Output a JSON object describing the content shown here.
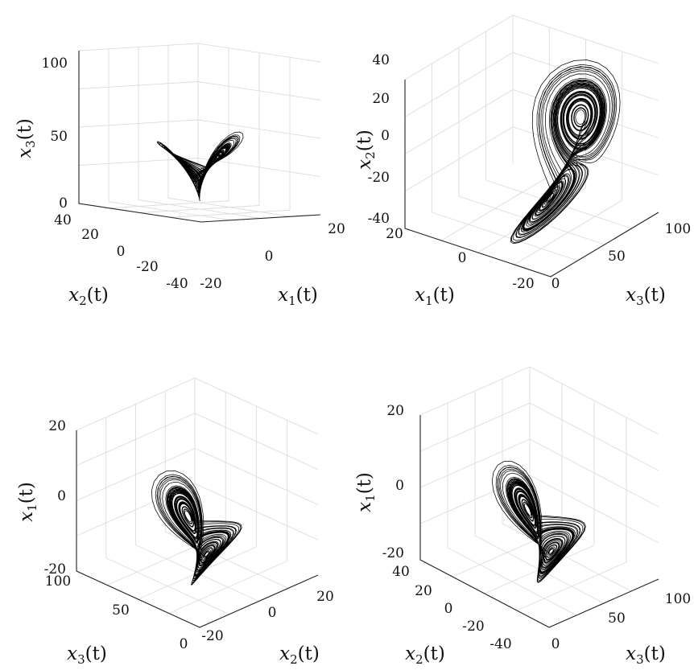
{
  "chart_data": [
    {
      "type": "line",
      "subtype": "3d-trajectory",
      "panel": "top-left",
      "xlabel": "x_1(t)",
      "ylabel": "x_2(t)",
      "zlabel": "x_3(t)",
      "xlim": [
        -20,
        20
      ],
      "ylim": [
        -40,
        40
      ],
      "zlim": [
        0,
        100
      ],
      "xticks": [
        "-20",
        "0",
        "20"
      ],
      "yticks": [
        "40",
        "20",
        "0",
        "-20",
        "-40"
      ],
      "zticks": [
        "0",
        "50",
        "100"
      ],
      "grid": true
    },
    {
      "type": "line",
      "subtype": "3d-trajectory",
      "panel": "top-right",
      "xlabel": "x_1(t)",
      "ylabel": "x_3(t)",
      "zlabel": "x_2(t)",
      "xlim": [
        -20,
        20
      ],
      "ylim": [
        0,
        100
      ],
      "zlim": [
        -40,
        40
      ],
      "xticks": [
        "20",
        "0",
        "-20"
      ],
      "yticks": [
        "0",
        "50",
        "100"
      ],
      "zticks": [
        "-40",
        "-20",
        "0",
        "20",
        "40"
      ],
      "grid": true
    },
    {
      "type": "line",
      "subtype": "3d-trajectory",
      "panel": "bottom-left",
      "xlabel": "x_3(t)",
      "ylabel": "x_2(t)",
      "zlabel": "x_1(t)",
      "xlim": [
        0,
        100
      ],
      "ylim": [
        -20,
        20
      ],
      "zlim": [
        -20,
        20
      ],
      "xticks": [
        "100",
        "50",
        "0"
      ],
      "yticks": [
        "-20",
        "0",
        "20"
      ],
      "zticks": [
        "-20",
        "0",
        "20"
      ],
      "grid": true
    },
    {
      "type": "line",
      "subtype": "3d-trajectory",
      "panel": "bottom-right",
      "xlabel": "x_2(t)",
      "ylabel": "x_3(t)",
      "zlabel": "x_1(t)",
      "xlim": [
        -40,
        40
      ],
      "ylim": [
        0,
        100
      ],
      "zlim": [
        -20,
        20
      ],
      "xticks": [
        "40",
        "20",
        "0",
        "-20",
        "-40"
      ],
      "yticks": [
        "0",
        "50",
        "100"
      ],
      "zticks": [
        "-20",
        "0",
        "20"
      ],
      "grid": true
    }
  ],
  "colors": {
    "trajectory": "#000000",
    "axes": "#222222",
    "grid": "#dcdcdc"
  }
}
